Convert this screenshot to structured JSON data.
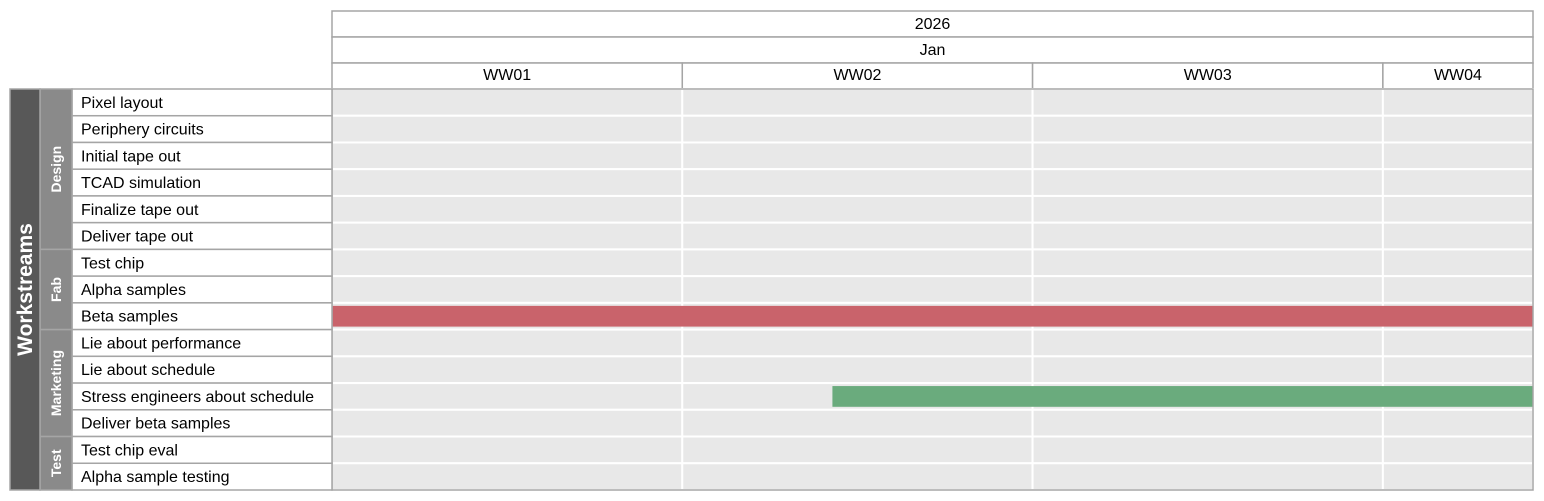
{
  "chart_data": {
    "type": "gantt",
    "title": "",
    "outer_label": "Workstreams",
    "year": "2026",
    "month": "Jan",
    "weeks": [
      {
        "label": "WW01",
        "start": "2026-01-01",
        "end": "2026-01-08"
      },
      {
        "label": "WW02",
        "start": "2026-01-08",
        "end": "2026-01-15"
      },
      {
        "label": "WW03",
        "start": "2026-01-15",
        "end": "2026-01-22"
      },
      {
        "label": "WW04",
        "start": "2026-01-22",
        "end": "2026-01-25"
      }
    ],
    "range": [
      "2026-01-01",
      "2026-01-25"
    ],
    "groups": [
      {
        "name": "Design",
        "tasks": [
          {
            "name": "Pixel layout"
          },
          {
            "name": "Periphery circuits"
          },
          {
            "name": "Initial tape out"
          },
          {
            "name": "TCAD simulation"
          },
          {
            "name": "Finalize tape out"
          },
          {
            "name": "Deliver tape out"
          }
        ]
      },
      {
        "name": "Fab",
        "tasks": [
          {
            "name": "Test chip"
          },
          {
            "name": "Alpha samples"
          },
          {
            "name": "Beta samples",
            "start": "2026-01-01",
            "end": "2026-01-25",
            "color": "#c9636b"
          }
        ]
      },
      {
        "name": "Marketing",
        "tasks": [
          {
            "name": "Lie about performance"
          },
          {
            "name": "Lie about schedule"
          },
          {
            "name": "Stress engineers about schedule",
            "start": "2026-01-11",
            "end": "2026-01-25",
            "color": "#6aab7d"
          },
          {
            "name": "Deliver beta samples"
          }
        ]
      },
      {
        "name": "Test",
        "tasks": [
          {
            "name": "Test chip eval"
          },
          {
            "name": "Alpha sample testing"
          }
        ]
      }
    ],
    "colors": {
      "outer_bg": "#585858",
      "group_bg": "#8a8a8a",
      "row_bg": "#e8e8e8",
      "grid": "#ffffff",
      "border": "#a5a5a5"
    }
  }
}
